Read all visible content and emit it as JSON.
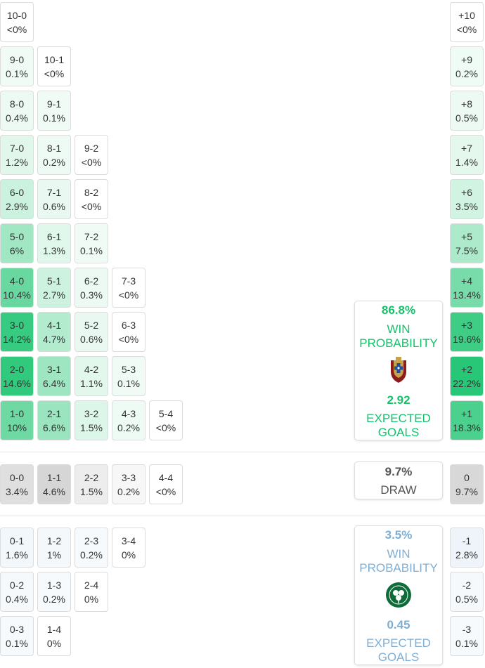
{
  "chart_data": {
    "type": "heatmap",
    "title": "Scoreline probability matrix",
    "colors": {
      "win": "#13c26a",
      "draw": "#8a8a8a",
      "loss": "#7eaed4",
      "text": "#333333",
      "border": "#dcdcdc"
    },
    "home_wins": [
      [
        {
          "score": "1-0",
          "p": "10%"
        },
        {
          "score": "2-1",
          "p": "6.6%"
        },
        {
          "score": "3-2",
          "p": "1.5%"
        },
        {
          "score": "4-3",
          "p": "0.2%"
        },
        {
          "score": "5-4",
          "p": "<0%"
        }
      ],
      [
        {
          "score": "2-0",
          "p": "14.6%"
        },
        {
          "score": "3-1",
          "p": "6.4%"
        },
        {
          "score": "4-2",
          "p": "1.1%"
        },
        {
          "score": "5-3",
          "p": "0.1%"
        }
      ],
      [
        {
          "score": "3-0",
          "p": "14.2%"
        },
        {
          "score": "4-1",
          "p": "4.7%"
        },
        {
          "score": "5-2",
          "p": "0.6%"
        },
        {
          "score": "6-3",
          "p": "<0%"
        }
      ],
      [
        {
          "score": "4-0",
          "p": "10.4%"
        },
        {
          "score": "5-1",
          "p": "2.7%"
        },
        {
          "score": "6-2",
          "p": "0.3%"
        },
        {
          "score": "7-3",
          "p": "<0%"
        }
      ],
      [
        {
          "score": "5-0",
          "p": "6%"
        },
        {
          "score": "6-1",
          "p": "1.3%"
        },
        {
          "score": "7-2",
          "p": "0.1%"
        }
      ],
      [
        {
          "score": "6-0",
          "p": "2.9%"
        },
        {
          "score": "7-1",
          "p": "0.6%"
        },
        {
          "score": "8-2",
          "p": "<0%"
        }
      ],
      [
        {
          "score": "7-0",
          "p": "1.2%"
        },
        {
          "score": "8-1",
          "p": "0.2%"
        },
        {
          "score": "9-2",
          "p": "<0%"
        }
      ],
      [
        {
          "score": "8-0",
          "p": "0.4%"
        },
        {
          "score": "9-1",
          "p": "0.1%"
        }
      ],
      [
        {
          "score": "9-0",
          "p": "0.1%"
        },
        {
          "score": "10-1",
          "p": "<0%"
        }
      ],
      [
        {
          "score": "10-0",
          "p": "<0%"
        }
      ]
    ],
    "draws": [
      {
        "score": "0-0",
        "p": "3.4%"
      },
      {
        "score": "1-1",
        "p": "4.6%"
      },
      {
        "score": "2-2",
        "p": "1.5%"
      },
      {
        "score": "3-3",
        "p": "0.2%"
      },
      {
        "score": "4-4",
        "p": "<0%"
      }
    ],
    "away_wins": [
      [
        {
          "score": "0-1",
          "p": "1.6%"
        },
        {
          "score": "1-2",
          "p": "1%"
        },
        {
          "score": "2-3",
          "p": "0.2%"
        },
        {
          "score": "3-4",
          "p": "0%"
        }
      ],
      [
        {
          "score": "0-2",
          "p": "0.4%"
        },
        {
          "score": "1-3",
          "p": "0.2%"
        },
        {
          "score": "2-4",
          "p": "0%"
        }
      ],
      [
        {
          "score": "0-3",
          "p": "0.1%"
        },
        {
          "score": "1-4",
          "p": "0%"
        }
      ]
    ],
    "margins_home": [
      {
        "label": "+1",
        "p": "18.3%"
      },
      {
        "label": "+2",
        "p": "22.2%"
      },
      {
        "label": "+3",
        "p": "19.6%"
      },
      {
        "label": "+4",
        "p": "13.4%"
      },
      {
        "label": "+5",
        "p": "7.5%"
      },
      {
        "label": "+6",
        "p": "3.5%"
      },
      {
        "label": "+7",
        "p": "1.4%"
      },
      {
        "label": "+8",
        "p": "0.5%"
      },
      {
        "label": "+9",
        "p": "0.2%"
      },
      {
        "label": "+10",
        "p": "<0%"
      }
    ],
    "margin_draw": {
      "label": "0",
      "p": "9.7%"
    },
    "margins_away": [
      {
        "label": "-1",
        "p": "2.8%"
      },
      {
        "label": "-2",
        "p": "0.5%"
      },
      {
        "label": "-3",
        "p": "0.1%"
      }
    ]
  },
  "summary": {
    "home": {
      "win_pct": "86.8%",
      "win_line1": "WIN",
      "win_line2": "PROBABILITY",
      "xg": "2.92",
      "xg_line1": "EXPECTED",
      "xg_line2": "GOALS",
      "crest_icon": "portugal-crest-icon",
      "color": "#13c26a"
    },
    "draw": {
      "pct": "9.7%",
      "label": "DRAW",
      "color": "#555555"
    },
    "away": {
      "win_pct": "3.5%",
      "win_line1": "WIN",
      "win_line2": "PROBABILITY",
      "xg": "0.45",
      "xg_line1": "EXPECTED",
      "xg_line2": "GOALS",
      "crest_icon": "ireland-crest-icon",
      "color": "#7eaed4"
    }
  }
}
